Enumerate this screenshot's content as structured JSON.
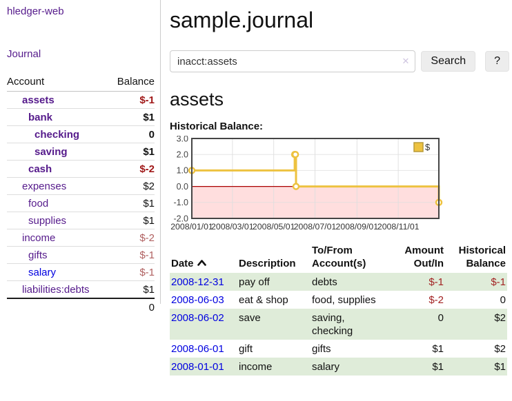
{
  "theme": {
    "link_purple": "#551a8b",
    "link_blue": "#0000e0",
    "negative_strong": "#a01818",
    "negative_soft": "#b06060",
    "negative_table": "#a22222",
    "positive_text": "#111111",
    "stripe_green": "#dfecd9",
    "series_yellow": "#edc240",
    "series_yellow_border": "#b89b3a",
    "negative_region_fill": "#ffdede",
    "zero_line": "#aa0000",
    "plot_border": "#454545",
    "grid_line": "#dedede"
  },
  "brand": "hledger-web",
  "nav": {
    "journal_label": "Journal"
  },
  "accounts_panel": {
    "headers": {
      "account": "Account",
      "balance": "Balance"
    },
    "rows": [
      {
        "name": "assets",
        "balance": "$-1",
        "depth": 1,
        "bold": true,
        "name_color": "#551a8b",
        "balance_color": "#a01818"
      },
      {
        "name": "bank",
        "balance": "$1",
        "depth": 2,
        "bold": true,
        "name_color": "#551a8b",
        "balance_color": "#111111"
      },
      {
        "name": "checking",
        "balance": "0",
        "depth": 3,
        "bold": true,
        "name_color": "#551a8b",
        "balance_color": "#111111"
      },
      {
        "name": "saving",
        "balance": "$1",
        "depth": 3,
        "bold": true,
        "name_color": "#551a8b",
        "balance_color": "#111111"
      },
      {
        "name": "cash",
        "balance": "$-2",
        "depth": 2,
        "bold": true,
        "name_color": "#551a8b",
        "balance_color": "#a01818"
      },
      {
        "name": "expenses",
        "balance": "$2",
        "depth": 1,
        "bold": false,
        "name_color": "#551a8b",
        "balance_color": "#111111"
      },
      {
        "name": "food",
        "balance": "$1",
        "depth": 2,
        "bold": false,
        "name_color": "#551a8b",
        "balance_color": "#111111"
      },
      {
        "name": "supplies",
        "balance": "$1",
        "depth": 2,
        "bold": false,
        "name_color": "#551a8b",
        "balance_color": "#111111"
      },
      {
        "name": "income",
        "balance": "$-2",
        "depth": 1,
        "bold": false,
        "name_color": "#551a8b",
        "balance_color": "#b06060"
      },
      {
        "name": "gifts",
        "balance": "$-1",
        "depth": 2,
        "bold": false,
        "name_color": "#551a8b",
        "balance_color": "#b06060"
      },
      {
        "name": "salary",
        "balance": "$-1",
        "depth": 2,
        "bold": false,
        "name_color": "#0000e0",
        "balance_color": "#b06060"
      },
      {
        "name": "liabilities:debts",
        "balance": "$1",
        "depth": 1,
        "bold": false,
        "name_color": "#551a8b",
        "balance_color": "#111111"
      }
    ],
    "total": "0"
  },
  "main": {
    "title": "sample.journal",
    "search": {
      "value": "inacct:assets",
      "clear_icon": "✕",
      "button_label": "Search",
      "help_label": "?"
    },
    "account_heading": "assets",
    "chart_label": "Historical Balance:"
  },
  "chart_data": {
    "type": "line",
    "step": true,
    "title": "Historical Balance",
    "series": [
      {
        "name": "$",
        "color": "#edc240",
        "points": [
          [
            "2008-01-01",
            1
          ],
          [
            "2008-06-01",
            2
          ],
          [
            "2008-06-02",
            2
          ],
          [
            "2008-06-03",
            0
          ],
          [
            "2008-12-31",
            -1
          ]
        ]
      }
    ],
    "xlim": [
      "2008-01-01",
      "2008-12-31"
    ],
    "ylim": [
      -2,
      3
    ],
    "yticks": [
      3.0,
      2.0,
      1.0,
      0.0,
      -1.0,
      -2.0
    ],
    "xticks": [
      "2008/01/01",
      "2008/03/01",
      "2008/05/01",
      "2008/07/01",
      "2008/09/01",
      "2008/11/01"
    ],
    "legend": {
      "label": "$",
      "position": "top-right"
    },
    "grid": true,
    "negative_region_shaded": true
  },
  "register_table": {
    "headers": {
      "date": "Date",
      "description": "Description",
      "accounts": "To/From Account(s)",
      "amount": "Amount Out/In",
      "balance": "Historical Balance"
    },
    "sort": {
      "column": "date",
      "direction": "ascending"
    },
    "rows": [
      {
        "date": "2008-12-31",
        "description": "pay off",
        "accounts_lines": [
          "debts"
        ],
        "amount": "$-1",
        "amount_negative": true,
        "balance": "$-1",
        "balance_negative": true
      },
      {
        "date": "2008-06-03",
        "description": "eat & shop",
        "accounts_lines": [
          "food, supplies"
        ],
        "amount": "$-2",
        "amount_negative": true,
        "balance": "0",
        "balance_negative": false
      },
      {
        "date": "2008-06-02",
        "description": "save",
        "accounts_lines": [
          "saving,",
          "checking"
        ],
        "amount": "0",
        "amount_negative": false,
        "balance": "$2",
        "balance_negative": false
      },
      {
        "date": "2008-06-01",
        "description": "gift",
        "accounts_lines": [
          "gifts"
        ],
        "amount": "$1",
        "amount_negative": false,
        "balance": "$2",
        "balance_negative": false
      },
      {
        "date": "2008-01-01",
        "description": "income",
        "accounts_lines": [
          "salary"
        ],
        "amount": "$1",
        "amount_negative": false,
        "balance": "$1",
        "balance_negative": false
      }
    ]
  }
}
